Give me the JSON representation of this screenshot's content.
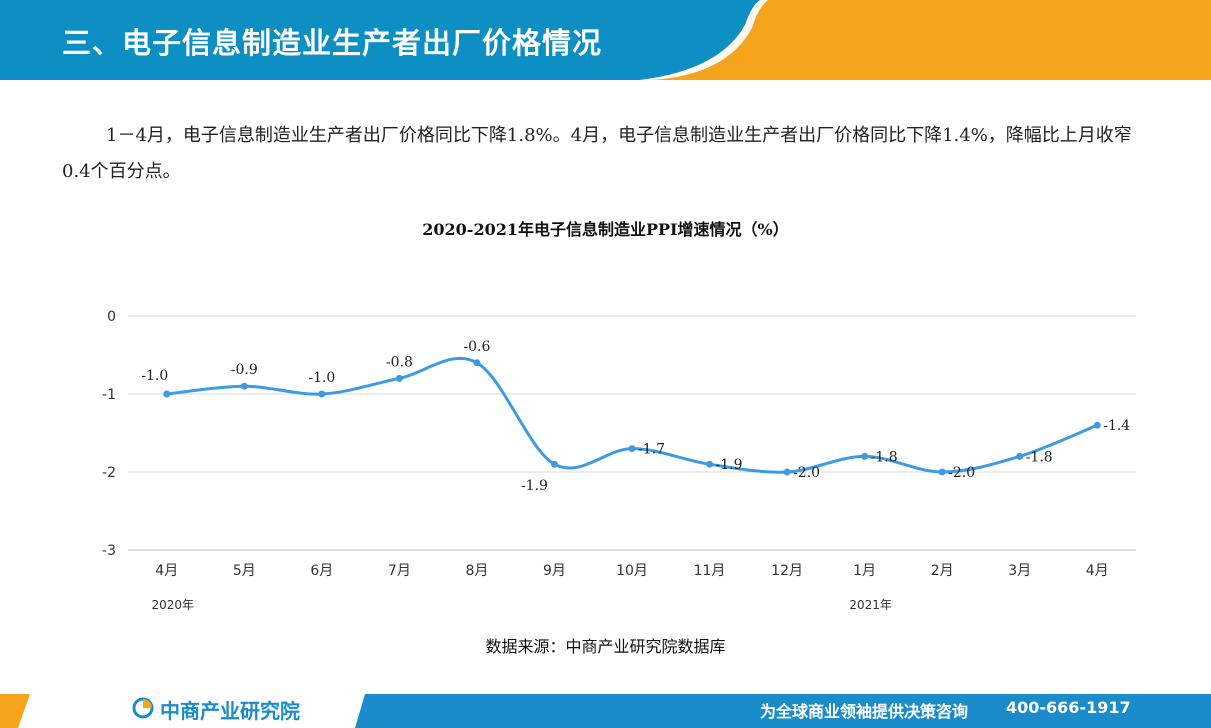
{
  "header": {
    "title": "三、电子信息制造业生产者出厂价格情况"
  },
  "body": {
    "paragraph": "1－4月，电子信息制造业生产者出厂价格同比下降1.8%。4月，电子信息制造业生产者出厂价格同比下降1.4%，降幅比上月收窄0.4个百分点。"
  },
  "colors": {
    "header_blue": "#0e8fc4",
    "header_orange": "#f5a41b",
    "line": "#3f9ae4",
    "grid": "#d9d9d9",
    "footer_blue": "#1a8ccc"
  },
  "chart_data": {
    "type": "line",
    "title": "2020-2021年电子信息制造业PPI增速情况（%）",
    "categories": [
      "4月",
      "5月",
      "6月",
      "7月",
      "8月",
      "9月",
      "10月",
      "11月",
      "12月",
      "1月",
      "2月",
      "3月",
      "4月"
    ],
    "year_labels": [
      {
        "label": "2020年",
        "index": 0
      },
      {
        "label": "2021年",
        "index": 9
      }
    ],
    "series": [
      {
        "values": [
          -1.0,
          -0.9,
          -1.0,
          -0.8,
          -0.6,
          -1.9,
          -1.7,
          -1.9,
          -2.0,
          -1.8,
          -2.0,
          -1.8,
          -1.4
        ]
      }
    ],
    "data_labels": [
      "-1.0",
      "-0.9",
      "-1.0",
      "-0.8",
      "-0.6",
      "-1.9",
      "-1.7",
      "-1.9",
      "-2.0",
      "-1.8",
      "-2.0",
      "-1.8",
      "-1.4"
    ],
    "y_ticks": [
      "0",
      "-1",
      "-2",
      "-3"
    ],
    "ylim": [
      -3,
      0
    ],
    "grid": true,
    "smooth": true,
    "legend": "none"
  },
  "source": "数据来源：中商产业研究院数据库",
  "footer": {
    "logo_text": "中商产业研究院",
    "slogan": "为全球商业领袖提供决策咨询",
    "phone": "400-666-1917"
  }
}
